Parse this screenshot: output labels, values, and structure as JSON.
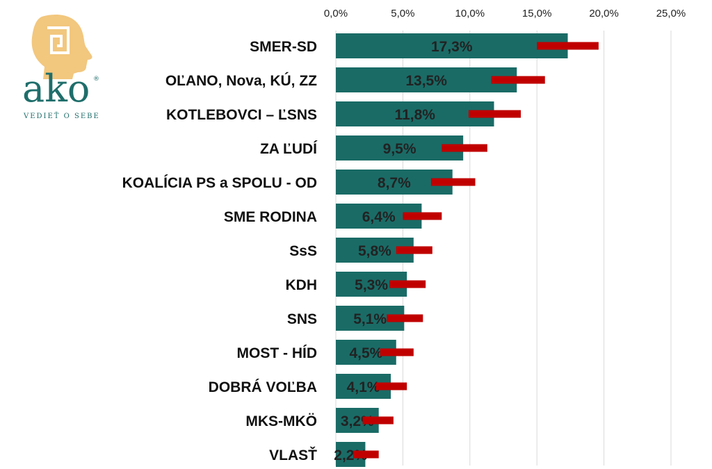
{
  "logo": {
    "word": "ako",
    "registered": "®",
    "tagline": "VEDIEŤ O SEBE",
    "head_color": "#f2c77e",
    "word_color": "#1f6e6b"
  },
  "chart_data": {
    "type": "bar",
    "orientation": "horizontal",
    "categories": [
      "SMER-SD",
      "OĽANO, Nova, KÚ, ZZ",
      "KOTLEBOVCI – ĽSNS",
      "ZA ĽUDÍ",
      "KOALÍCIA PS a SPOLU - OD",
      "SME RODINA",
      "SsS",
      "KDH",
      "SNS",
      "MOST - HÍD",
      "DOBRÁ VOĽBA",
      "MKS-MKÖ",
      "VLASŤ"
    ],
    "values": [
      17.3,
      13.5,
      11.8,
      9.5,
      8.7,
      6.4,
      5.8,
      5.3,
      5.1,
      4.5,
      4.1,
      3.2,
      2.2
    ],
    "value_labels": [
      "17,3%",
      "13,5%",
      "11,8%",
      "9,5%",
      "8,7%",
      "6,4%",
      "5,8%",
      "5,3%",
      "5,1%",
      "4,5%",
      "4,1%",
      "3,2%",
      "2,2%"
    ],
    "error_ranges": [
      [
        15.0,
        19.6
      ],
      [
        11.6,
        15.6
      ],
      [
        9.9,
        13.8
      ],
      [
        7.9,
        11.3
      ],
      [
        7.1,
        10.4
      ],
      [
        5.0,
        7.9
      ],
      [
        4.5,
        7.2
      ],
      [
        4.0,
        6.7
      ],
      [
        3.8,
        6.5
      ],
      [
        3.3,
        5.8
      ],
      [
        3.0,
        5.3
      ],
      [
        2.0,
        4.3
      ],
      [
        1.3,
        3.2
      ]
    ],
    "xlim": [
      0,
      25
    ],
    "x_ticks": [
      0,
      5,
      10,
      15,
      20,
      25
    ],
    "x_tick_labels": [
      "0,0%",
      "5,0%",
      "10,0%",
      "15,0%",
      "20,0%",
      "25,0%"
    ],
    "axis_position": "top",
    "grid": true,
    "bar_color": "#1a6b66",
    "error_color": "#c00000",
    "title": "",
    "xlabel": "",
    "ylabel": ""
  }
}
